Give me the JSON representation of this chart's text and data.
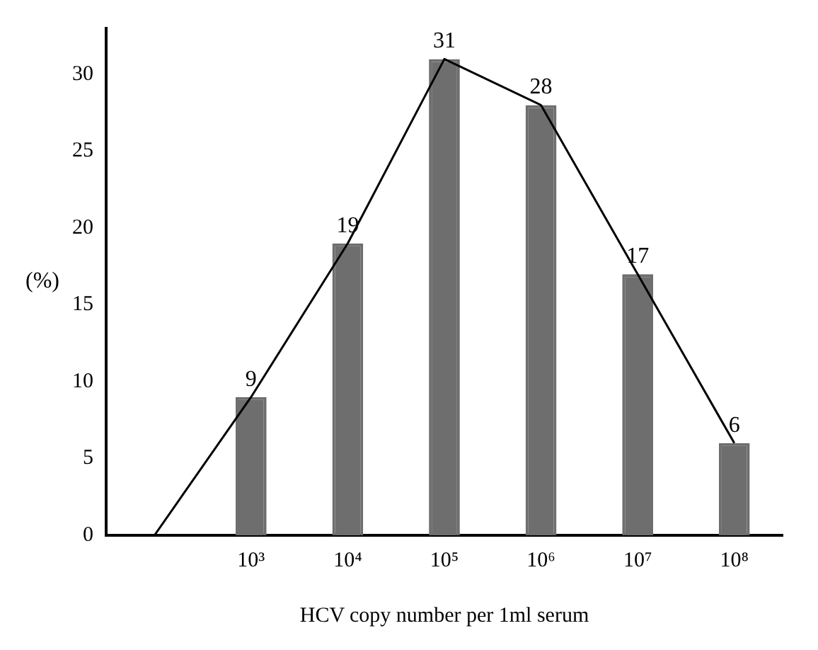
{
  "chart_data": {
    "type": "bar",
    "xlabel": "HCV copy number per 1ml serum",
    "ylabel": "(%)",
    "categories": [
      null,
      "10³",
      "10⁴",
      "10⁵",
      "10⁶",
      "10⁷",
      "10⁸"
    ],
    "series": [
      {
        "color": "#6e6e6e",
        "values": [
          null,
          9,
          19,
          31,
          28,
          17,
          6
        ],
        "value_labels": [
          null,
          "9",
          "19",
          "31",
          "28",
          "17",
          "6"
        ]
      },
      {
        "type": "line",
        "color": "#000000",
        "values": [
          0,
          9,
          19,
          31,
          28,
          17,
          6
        ]
      }
    ],
    "ylim": [
      0,
      33
    ],
    "yticks": [
      0,
      5,
      10,
      15,
      20,
      25,
      30
    ],
    "grid": false,
    "legend": false,
    "marker": "none",
    "line_style": "solid"
  }
}
